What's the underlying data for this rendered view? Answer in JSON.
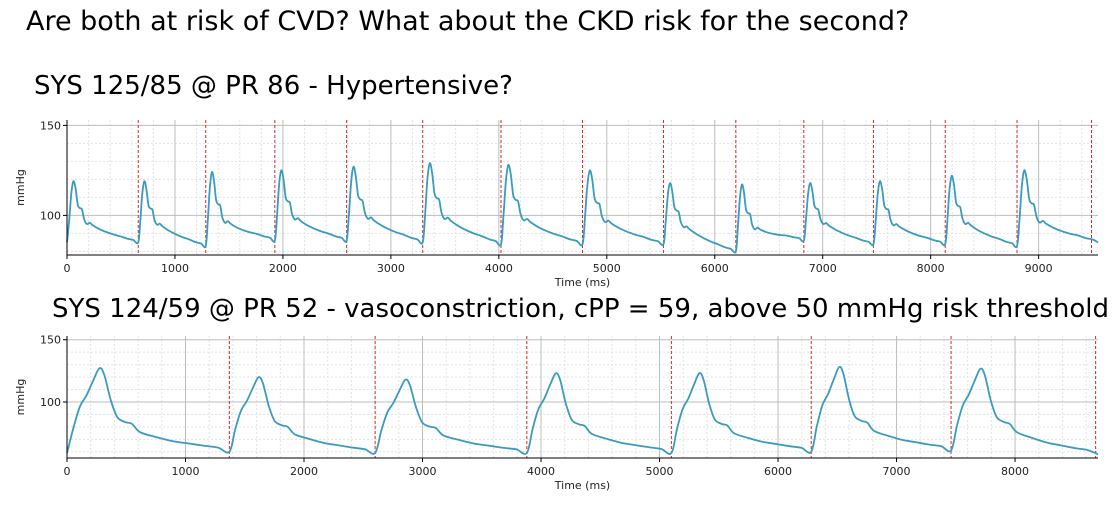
{
  "headline": "Are both at risk of CVD? What about the CKD risk for the second?",
  "chart_data": [
    {
      "type": "line",
      "title": "SYS 125/85 @ PR 86 - Hypertensive?",
      "xlabel": "Time (ms)",
      "ylabel": "mmHg",
      "xlim": [
        0,
        9550
      ],
      "ylim": [
        78,
        153
      ],
      "xticks": [
        0,
        1000,
        2000,
        3000,
        4000,
        5000,
        6000,
        7000,
        8000,
        9000
      ],
      "yticks": [
        100,
        150
      ],
      "grid": true,
      "line_color": "#3a9bbf",
      "marker_color": "#d62728",
      "beat_markers_ms": [
        660,
        1285,
        1925,
        2590,
        3295,
        4020,
        4775,
        5525,
        6195,
        6825,
        7470,
        8135,
        8800,
        9490
      ],
      "beats": [
        {
          "start": 0,
          "trough": 85,
          "peak": 119
        },
        {
          "start": 660,
          "trough": 85,
          "peak": 119
        },
        {
          "start": 1285,
          "trough": 83,
          "peak": 124
        },
        {
          "start": 1925,
          "trough": 86,
          "peak": 125
        },
        {
          "start": 2590,
          "trough": 86,
          "peak": 127
        },
        {
          "start": 3295,
          "trough": 85,
          "peak": 129
        },
        {
          "start": 4020,
          "trough": 84,
          "peak": 128
        },
        {
          "start": 4775,
          "trough": 84,
          "peak": 125
        },
        {
          "start": 5525,
          "trough": 84,
          "peak": 118
        },
        {
          "start": 6195,
          "trough": 80,
          "peak": 117
        },
        {
          "start": 6825,
          "trough": 86,
          "peak": 118
        },
        {
          "start": 7470,
          "trough": 84,
          "peak": 119
        },
        {
          "start": 8135,
          "trough": 84,
          "peak": 122
        },
        {
          "start": 8800,
          "trough": 83,
          "peak": 125
        }
      ],
      "end_value": 85
    },
    {
      "type": "line",
      "title": "SYS 124/59 @ PR 52 - vasoconstriction, cPP = 59, above 50 mmHg risk threshold",
      "xlabel": "Time (ms)",
      "ylabel": "mmHg",
      "xlim": [
        0,
        8700
      ],
      "ylim": [
        55,
        153
      ],
      "xticks": [
        0,
        1000,
        2000,
        3000,
        4000,
        5000,
        6000,
        7000,
        8000
      ],
      "yticks": [
        100,
        150
      ],
      "grid": true,
      "line_color": "#3a9bbf",
      "marker_color": "#d62728",
      "beat_markers_ms": [
        1370,
        2600,
        3880,
        5100,
        6280,
        7460,
        8680
      ],
      "beats": [
        {
          "start": 0,
          "trough": 59,
          "peak": 127
        },
        {
          "start": 1370,
          "trough": 60,
          "peak": 120
        },
        {
          "start": 2600,
          "trough": 59,
          "peak": 118
        },
        {
          "start": 3880,
          "trough": 59,
          "peak": 123
        },
        {
          "start": 5100,
          "trough": 59,
          "peak": 123
        },
        {
          "start": 6280,
          "trough": 60,
          "peak": 128
        },
        {
          "start": 7460,
          "trough": 61,
          "peak": 127
        }
      ],
      "end_value": 58
    }
  ]
}
